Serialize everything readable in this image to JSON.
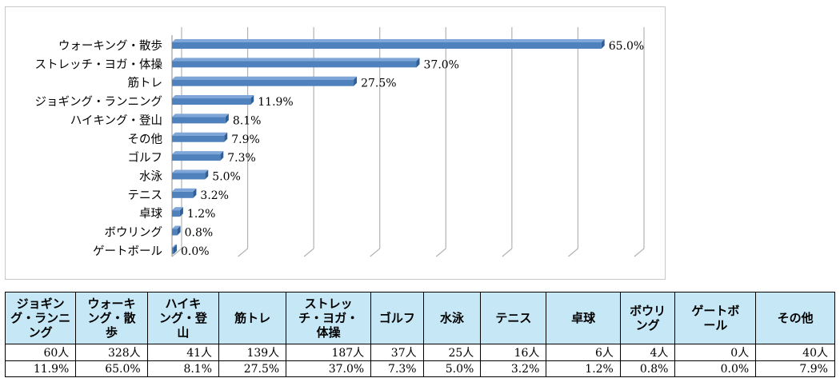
{
  "chart_data": {
    "type": "bar",
    "orientation": "horizontal",
    "categories": [
      "ウォーキング・散歩",
      "ストレッチ・ヨガ・体操",
      "筋トレ",
      "ジョギング・ランニング",
      "ハイキング・登山",
      "その他",
      "ゴルフ",
      "水泳",
      "テニス",
      "卓球",
      "ボウリング",
      "ゲートボール"
    ],
    "values": [
      65.0,
      37.0,
      27.5,
      11.9,
      8.1,
      7.9,
      7.3,
      5.0,
      3.2,
      1.2,
      0.8,
      0.0
    ],
    "value_labels": [
      "65.0%",
      "37.0%",
      "27.5%",
      "11.9%",
      "8.1%",
      "7.9%",
      "7.3%",
      "5.0%",
      "3.2%",
      "1.2%",
      "0.8%",
      "0.0%"
    ],
    "xlim": [
      0,
      70
    ],
    "grid": true,
    "bar_color": "#4f81bd"
  },
  "table": {
    "header_color": "#c6e8f6",
    "headers": [
      "ジョギング・ランニング",
      "ウォーキング・散歩",
      "ハイキング・登山",
      "筋トレ",
      "ストレッチ・ヨガ・体操",
      "ゴルフ",
      "水泳",
      "テニス",
      "卓球",
      "ボウリング",
      "ゲートボール",
      "その他"
    ],
    "header_lines": [
      [
        "ジョギン",
        "グ・ランニ",
        "ング"
      ],
      [
        "ウォーキ",
        "ング・散",
        "歩"
      ],
      [
        "ハイキ",
        "ング・登",
        "山"
      ],
      [
        "筋トレ"
      ],
      [
        "ストレッ",
        "チ・ヨガ・",
        "体操"
      ],
      [
        "ゴルフ"
      ],
      [
        "水泳"
      ],
      [
        "テニス"
      ],
      [
        "卓球"
      ],
      [
        "ボウリ",
        "ング"
      ],
      [
        "ゲートボ",
        "ール"
      ],
      [
        "その他"
      ]
    ],
    "counts": [
      "60人",
      "328人",
      "41人",
      "139人",
      "187人",
      "37人",
      "25人",
      "16人",
      "6人",
      "4人",
      "0人",
      "40人"
    ],
    "percents": [
      "11.9%",
      "65.0%",
      "8.1%",
      "27.5%",
      "37.0%",
      "7.3%",
      "5.0%",
      "3.2%",
      "1.2%",
      "0.8%",
      "0.0%",
      "7.9%"
    ]
  }
}
